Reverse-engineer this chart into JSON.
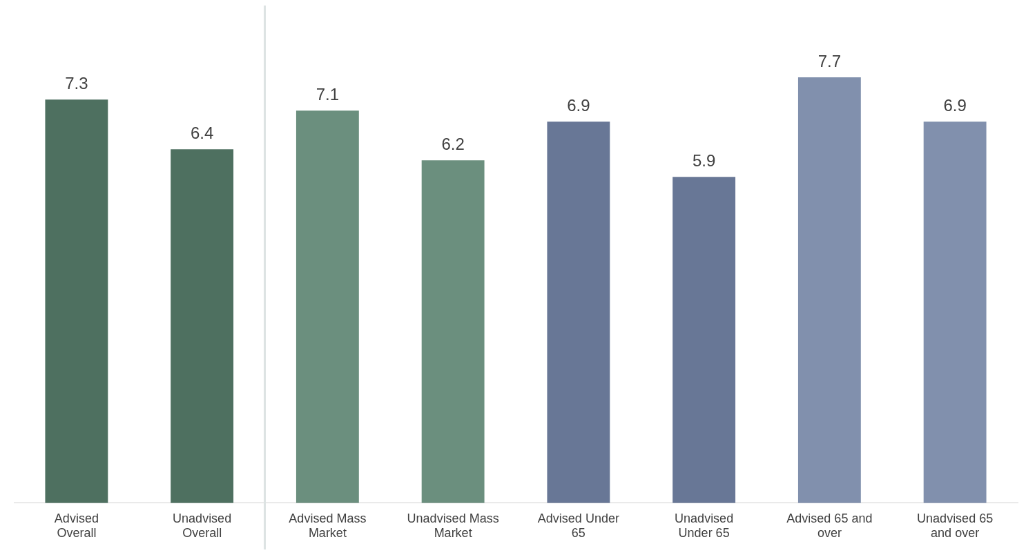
{
  "chart_data": {
    "type": "bar",
    "categories": [
      "Advised Overall",
      "Unadvised Overall",
      "Advised Mass Market",
      "Unadvised Mass Market",
      "Advised Under 65",
      "Unadvised Under 65",
      "Advised 65 and over",
      "Unadvised 65 and over"
    ],
    "values": [
      7.3,
      6.4,
      7.1,
      6.2,
      6.9,
      5.9,
      7.7,
      6.9
    ],
    "colors": [
      "#4e7060",
      "#4e7060",
      "#6b8f7e",
      "#6b8f7e",
      "#687796",
      "#687796",
      "#8190ad",
      "#8190ad"
    ],
    "data_labels": true,
    "grid": false,
    "legend": false,
    "tick_labels": "x"
  }
}
